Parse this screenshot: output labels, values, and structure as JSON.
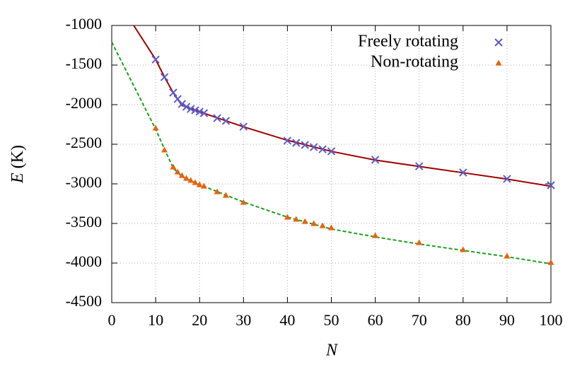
{
  "chart_data": {
    "type": "scatter",
    "x_label": "N",
    "y_label": "E",
    "y_unit": "(K)",
    "xlim": [
      0,
      100
    ],
    "ylim": [
      -4500,
      -1000
    ],
    "xticks": [
      0,
      10,
      20,
      30,
      40,
      50,
      60,
      70,
      80,
      90,
      100
    ],
    "yticks": [
      -4500,
      -4000,
      -3500,
      -3000,
      -2500,
      -2000,
      -1500,
      -1000
    ],
    "grid": true,
    "legend": "top-right",
    "series": [
      {
        "name": "Freely rotating",
        "color": "#5b5bc8",
        "marker": "x",
        "x": [
          10,
          12,
          14,
          15,
          16,
          17,
          18,
          19,
          20,
          21,
          24,
          26,
          30,
          40,
          42,
          44,
          46,
          48,
          50,
          60,
          70,
          80,
          90,
          100
        ],
        "values": [
          -1430,
          -1652,
          -1848,
          -1929,
          -1991,
          -2027,
          -2054,
          -2071,
          -2089,
          -2107,
          -2170,
          -2205,
          -2277,
          -2455,
          -2482,
          -2509,
          -2536,
          -2563,
          -2589,
          -2696,
          -2777,
          -2857,
          -2937,
          -3018
        ]
      },
      {
        "name": "Non-rotating",
        "color": "#e8620f",
        "marker": "triangle",
        "x": [
          10,
          12,
          14,
          15,
          16,
          17,
          18,
          19,
          20,
          21,
          24,
          26,
          30,
          40,
          42,
          44,
          46,
          48,
          50,
          60,
          70,
          80,
          90,
          100
        ],
        "values": [
          -2295,
          -2571,
          -2786,
          -2848,
          -2893,
          -2929,
          -2955,
          -2982,
          -3009,
          -3027,
          -3098,
          -3143,
          -3232,
          -3420,
          -3446,
          -3473,
          -3500,
          -3527,
          -3554,
          -3652,
          -3741,
          -3830,
          -3911,
          -3991
        ]
      }
    ],
    "lines": [
      {
        "color": "#a00000",
        "dashed": false,
        "x": [
          5,
          10,
          12,
          14,
          16,
          20,
          30,
          40,
          50,
          60,
          70,
          80,
          90,
          100
        ],
        "values": [
          -1000,
          -1430,
          -1650,
          -1850,
          -2010,
          -2090,
          -2280,
          -2450,
          -2590,
          -2700,
          -2780,
          -2860,
          -2940,
          -3030
        ]
      },
      {
        "color": "#1aa01a",
        "dashed": true,
        "x": [
          0,
          10,
          12,
          14,
          16,
          20,
          30,
          40,
          50,
          60,
          70,
          80,
          90,
          100
        ],
        "values": [
          -1210,
          -2310,
          -2560,
          -2800,
          -2910,
          -3010,
          -3230,
          -3420,
          -3570,
          -3670,
          -3760,
          -3840,
          -3920,
          -4010
        ]
      }
    ]
  }
}
